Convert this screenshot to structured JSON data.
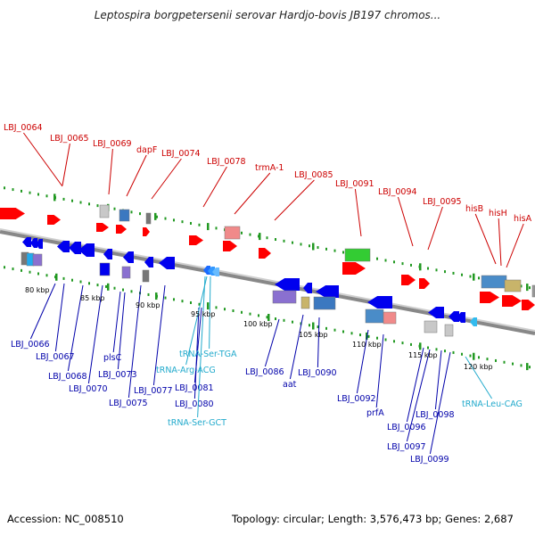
{
  "title": "Leptospira borgpetersenii serovar Hardjo-bovis JB197 chromos...",
  "footer": {
    "accession": "Accession: NC_008510",
    "topology": "Topology: circular; Length: 3,576,473 bp; Genes: 2,687"
  },
  "colors": {
    "forward_label": "#cc0000",
    "reverse_label": "#0000aa",
    "trna_label": "#22aacc",
    "tick": "#229922",
    "backbone": "#888888"
  },
  "kbp_ticks": [
    "80 kbp",
    "85 kbp",
    "90 kbp",
    "95 kbp",
    "100 kbp",
    "105 kbp",
    "110 kbp",
    "115 kbp",
    "120 kbp"
  ],
  "forward_genes": [
    "LBJ_0064",
    "LBJ_0065",
    "LBJ_0069",
    "dapF",
    "LBJ_0074",
    "LBJ_0078",
    "trmA-1",
    "LBJ_0085",
    "LBJ_0091",
    "LBJ_0094",
    "LBJ_0095",
    "hisB",
    "hisH",
    "hisA"
  ],
  "reverse_genes": [
    "LBJ_0066",
    "LBJ_0067",
    "LBJ_0068",
    "LBJ_0070",
    "plsC",
    "LBJ_0073",
    "LBJ_0075",
    "LBJ_0077",
    "LBJ_0081",
    "LBJ_0080",
    "LBJ_0086",
    "aat",
    "LBJ_0090",
    "LBJ_0092",
    "prfA",
    "LBJ_0096",
    "LBJ_0097",
    "LBJ_0098",
    "LBJ_0099"
  ],
  "trna_genes": [
    "tRNA-Ser-TGA",
    "tRNA-Arg-ACG",
    "tRNA-Ser-GCT",
    "tRNA-Leu-CAG"
  ]
}
